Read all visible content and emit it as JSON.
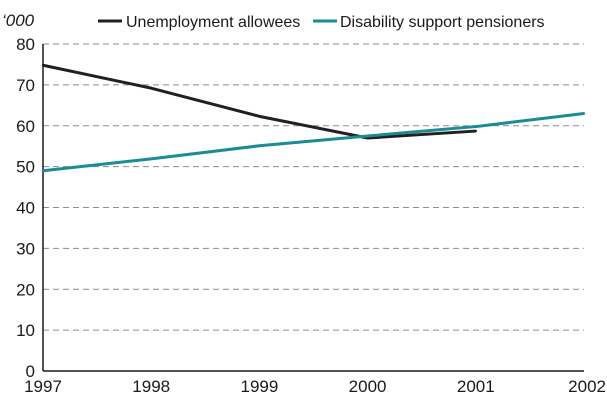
{
  "chart_data": {
    "type": "line",
    "title": "",
    "ylabel": "",
    "unit_label": "‘000",
    "x": [
      1997,
      1998,
      1999,
      2000,
      2001,
      2002
    ],
    "xtick_labels": [
      "1997",
      "1998",
      "1999",
      "2000",
      "2001",
      "2002"
    ],
    "ylim": [
      0,
      80
    ],
    "yticks": [
      0,
      10,
      20,
      30,
      40,
      50,
      60,
      70,
      80
    ],
    "ytick_labels": [
      "0",
      "10",
      "20",
      "30",
      "40",
      "50",
      "60",
      "70",
      "80"
    ],
    "grid": "horizontal dashed",
    "legend_position": "top",
    "series": [
      {
        "name": "Unemployment allowees",
        "color": "#231f20",
        "x": [
          1997,
          1998,
          1999,
          2000,
          2001
        ],
        "values": [
          74.8,
          69.2,
          62.3,
          57.0,
          58.7
        ]
      },
      {
        "name": "Disability support pensioners",
        "color": "#1b8b95",
        "x": [
          1997,
          1998,
          1999,
          2000,
          2001,
          2002
        ],
        "values": [
          49.0,
          51.9,
          55.1,
          57.5,
          59.8,
          63.0
        ]
      }
    ]
  }
}
